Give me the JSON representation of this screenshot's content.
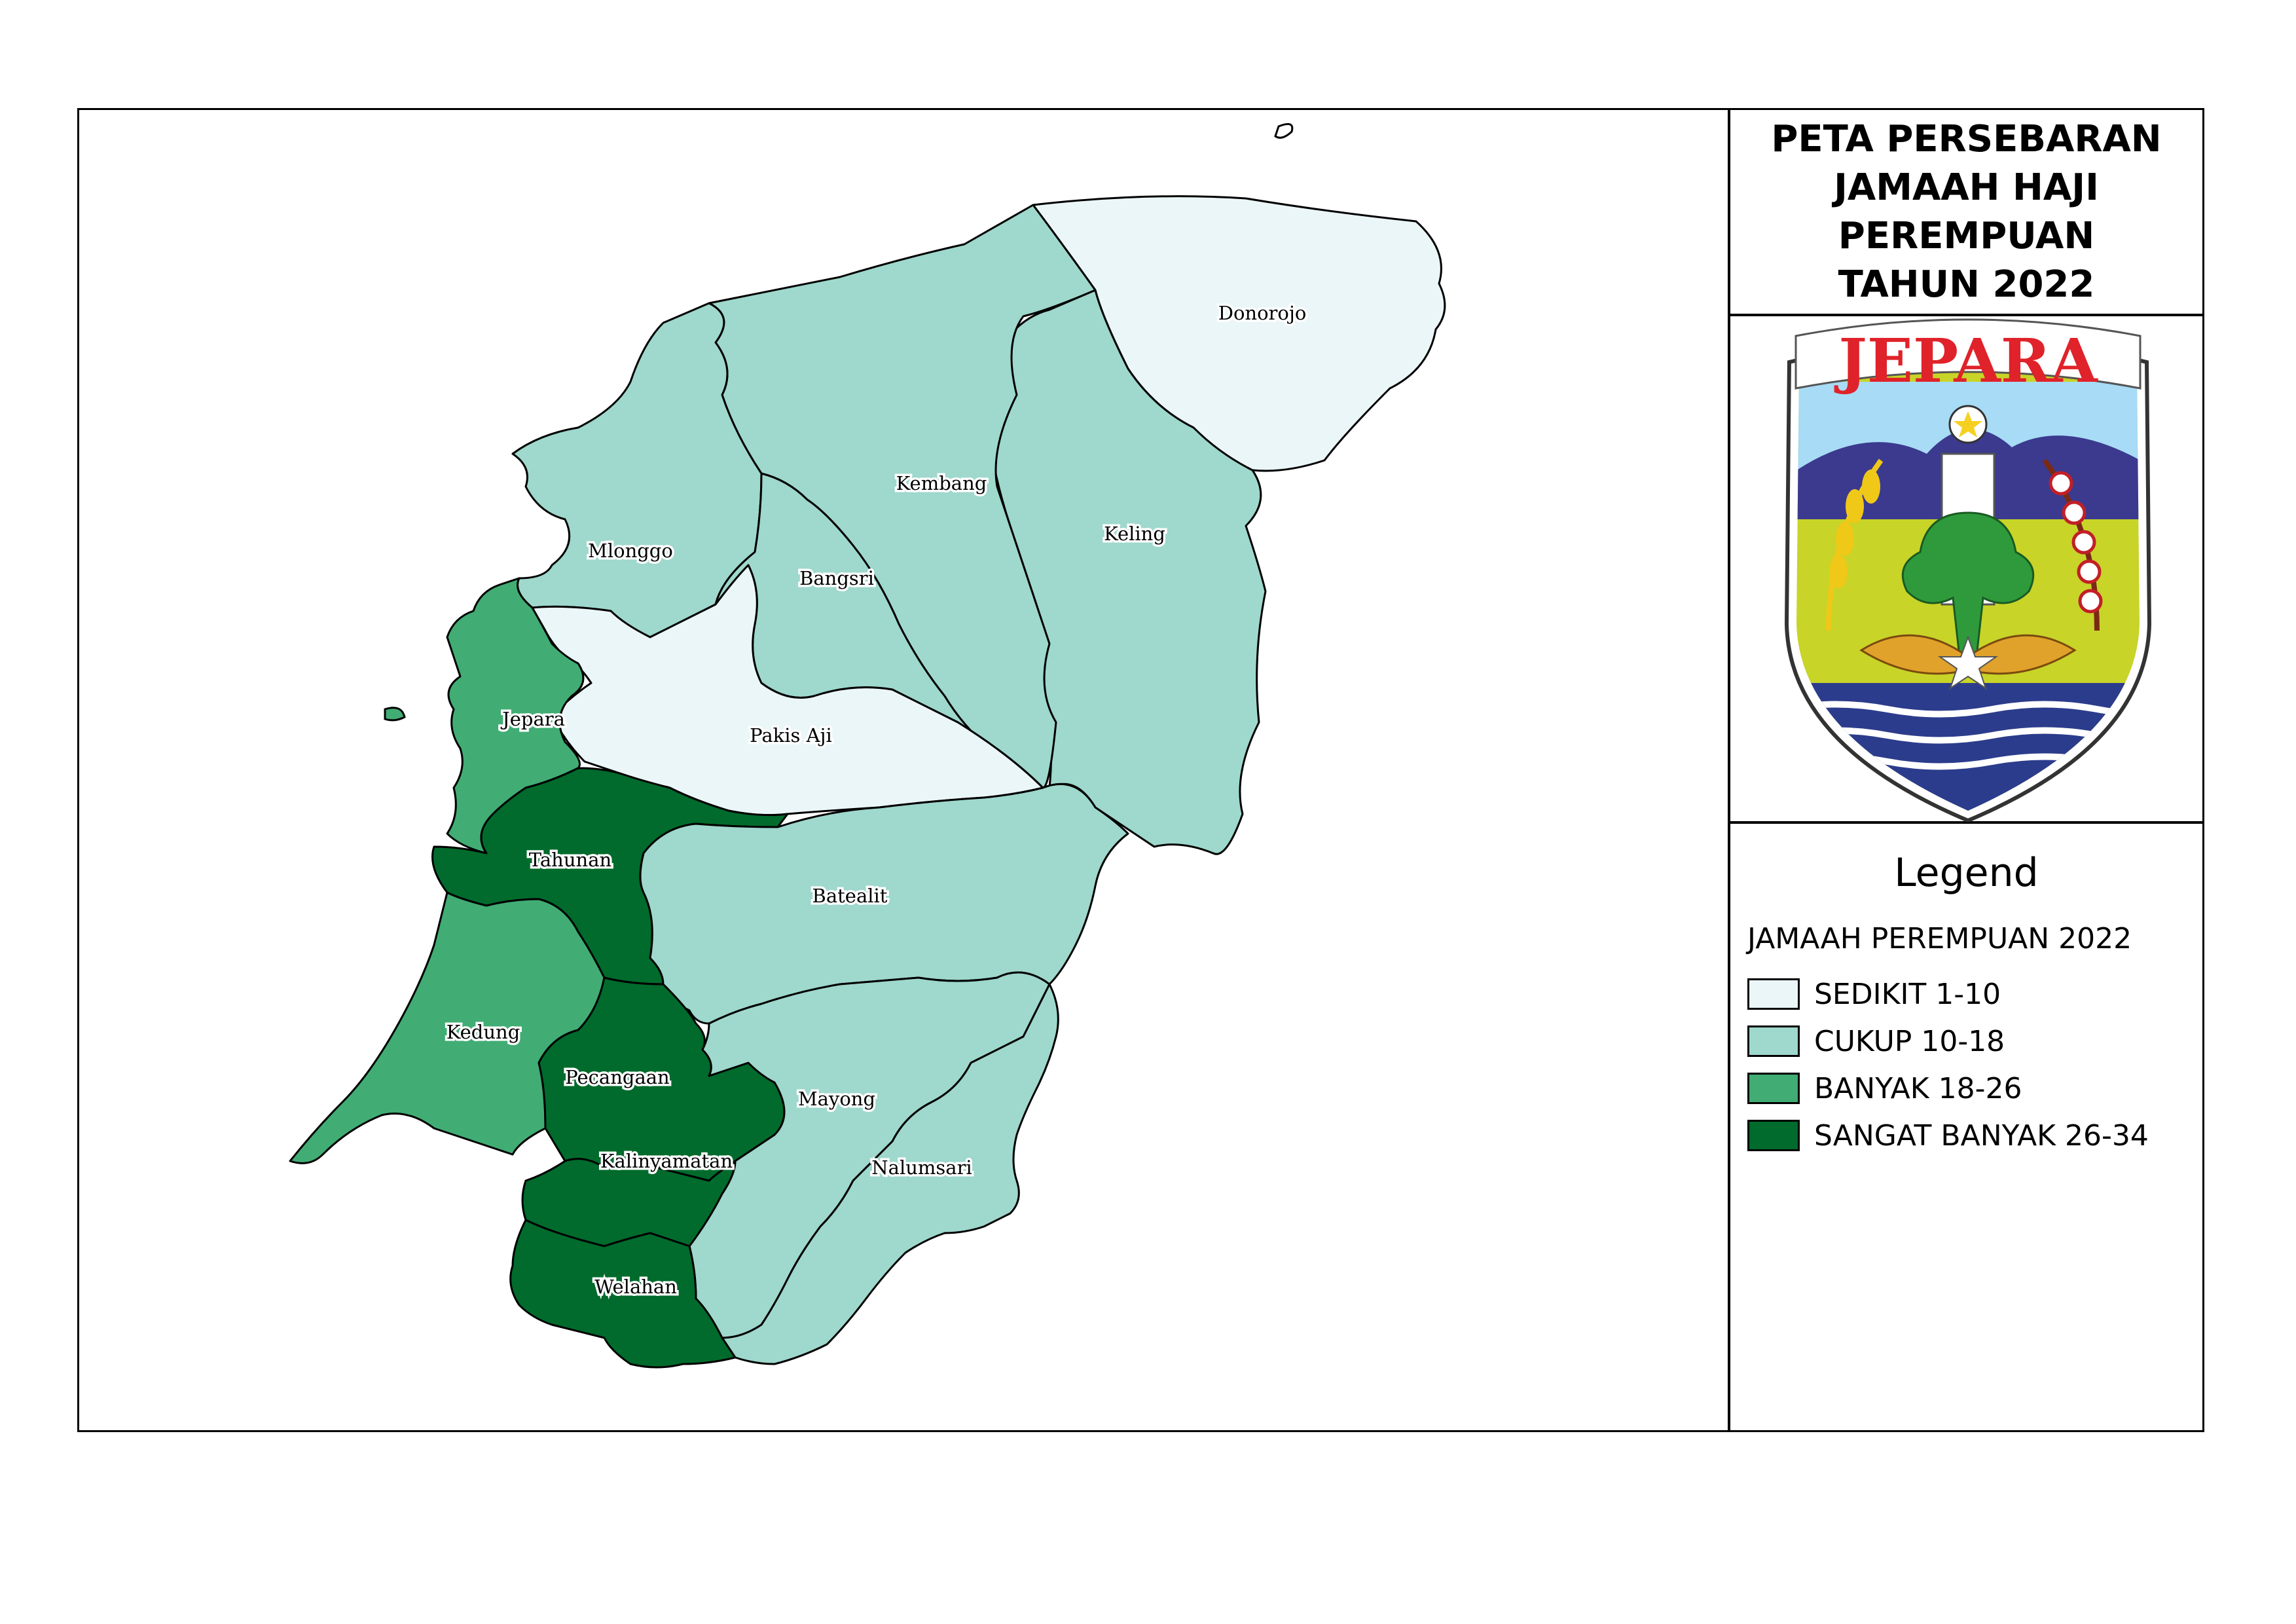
{
  "title": {
    "lines": [
      "PETA PERSEBARAN",
      "JAMAAH HAJI",
      "PEREMPUAN",
      "TAHUN 2022"
    ]
  },
  "logo": {
    "text": "JEPARA",
    "name": "jepara-regency-emblem"
  },
  "legend": {
    "heading": "Legend",
    "subtitle": "JAMAAH PEREMPUAN 2022",
    "items": [
      {
        "label": "SEDIKIT 1-10",
        "color": "#ebf6f8"
      },
      {
        "label": "CUKUP 10-18",
        "color": "#9fd8cd"
      },
      {
        "label": "BANYAK 18-26",
        "color": "#41ad74"
      },
      {
        "label": "SANGAT BANYAK 26-34",
        "color": "#006b2c"
      }
    ]
  },
  "map": {
    "districts": [
      {
        "name": "Donorojo",
        "class": 0
      },
      {
        "name": "Kembang",
        "class": 1
      },
      {
        "name": "Keling",
        "class": 1
      },
      {
        "name": "Mlonggo",
        "class": 1
      },
      {
        "name": "Bangsri",
        "class": 1
      },
      {
        "name": "Pakis Aji",
        "class": 0
      },
      {
        "name": "Jepara",
        "class": 2
      },
      {
        "name": "Tahunan",
        "class": 3
      },
      {
        "name": "Batealit",
        "class": 1
      },
      {
        "name": "Kedung",
        "class": 2
      },
      {
        "name": "Pecangaan",
        "class": 3
      },
      {
        "name": "Mayong",
        "class": 1
      },
      {
        "name": "Kalinyamatan",
        "class": 3
      },
      {
        "name": "Nalumsari",
        "class": 1
      },
      {
        "name": "Welahan",
        "class": 3
      }
    ]
  }
}
